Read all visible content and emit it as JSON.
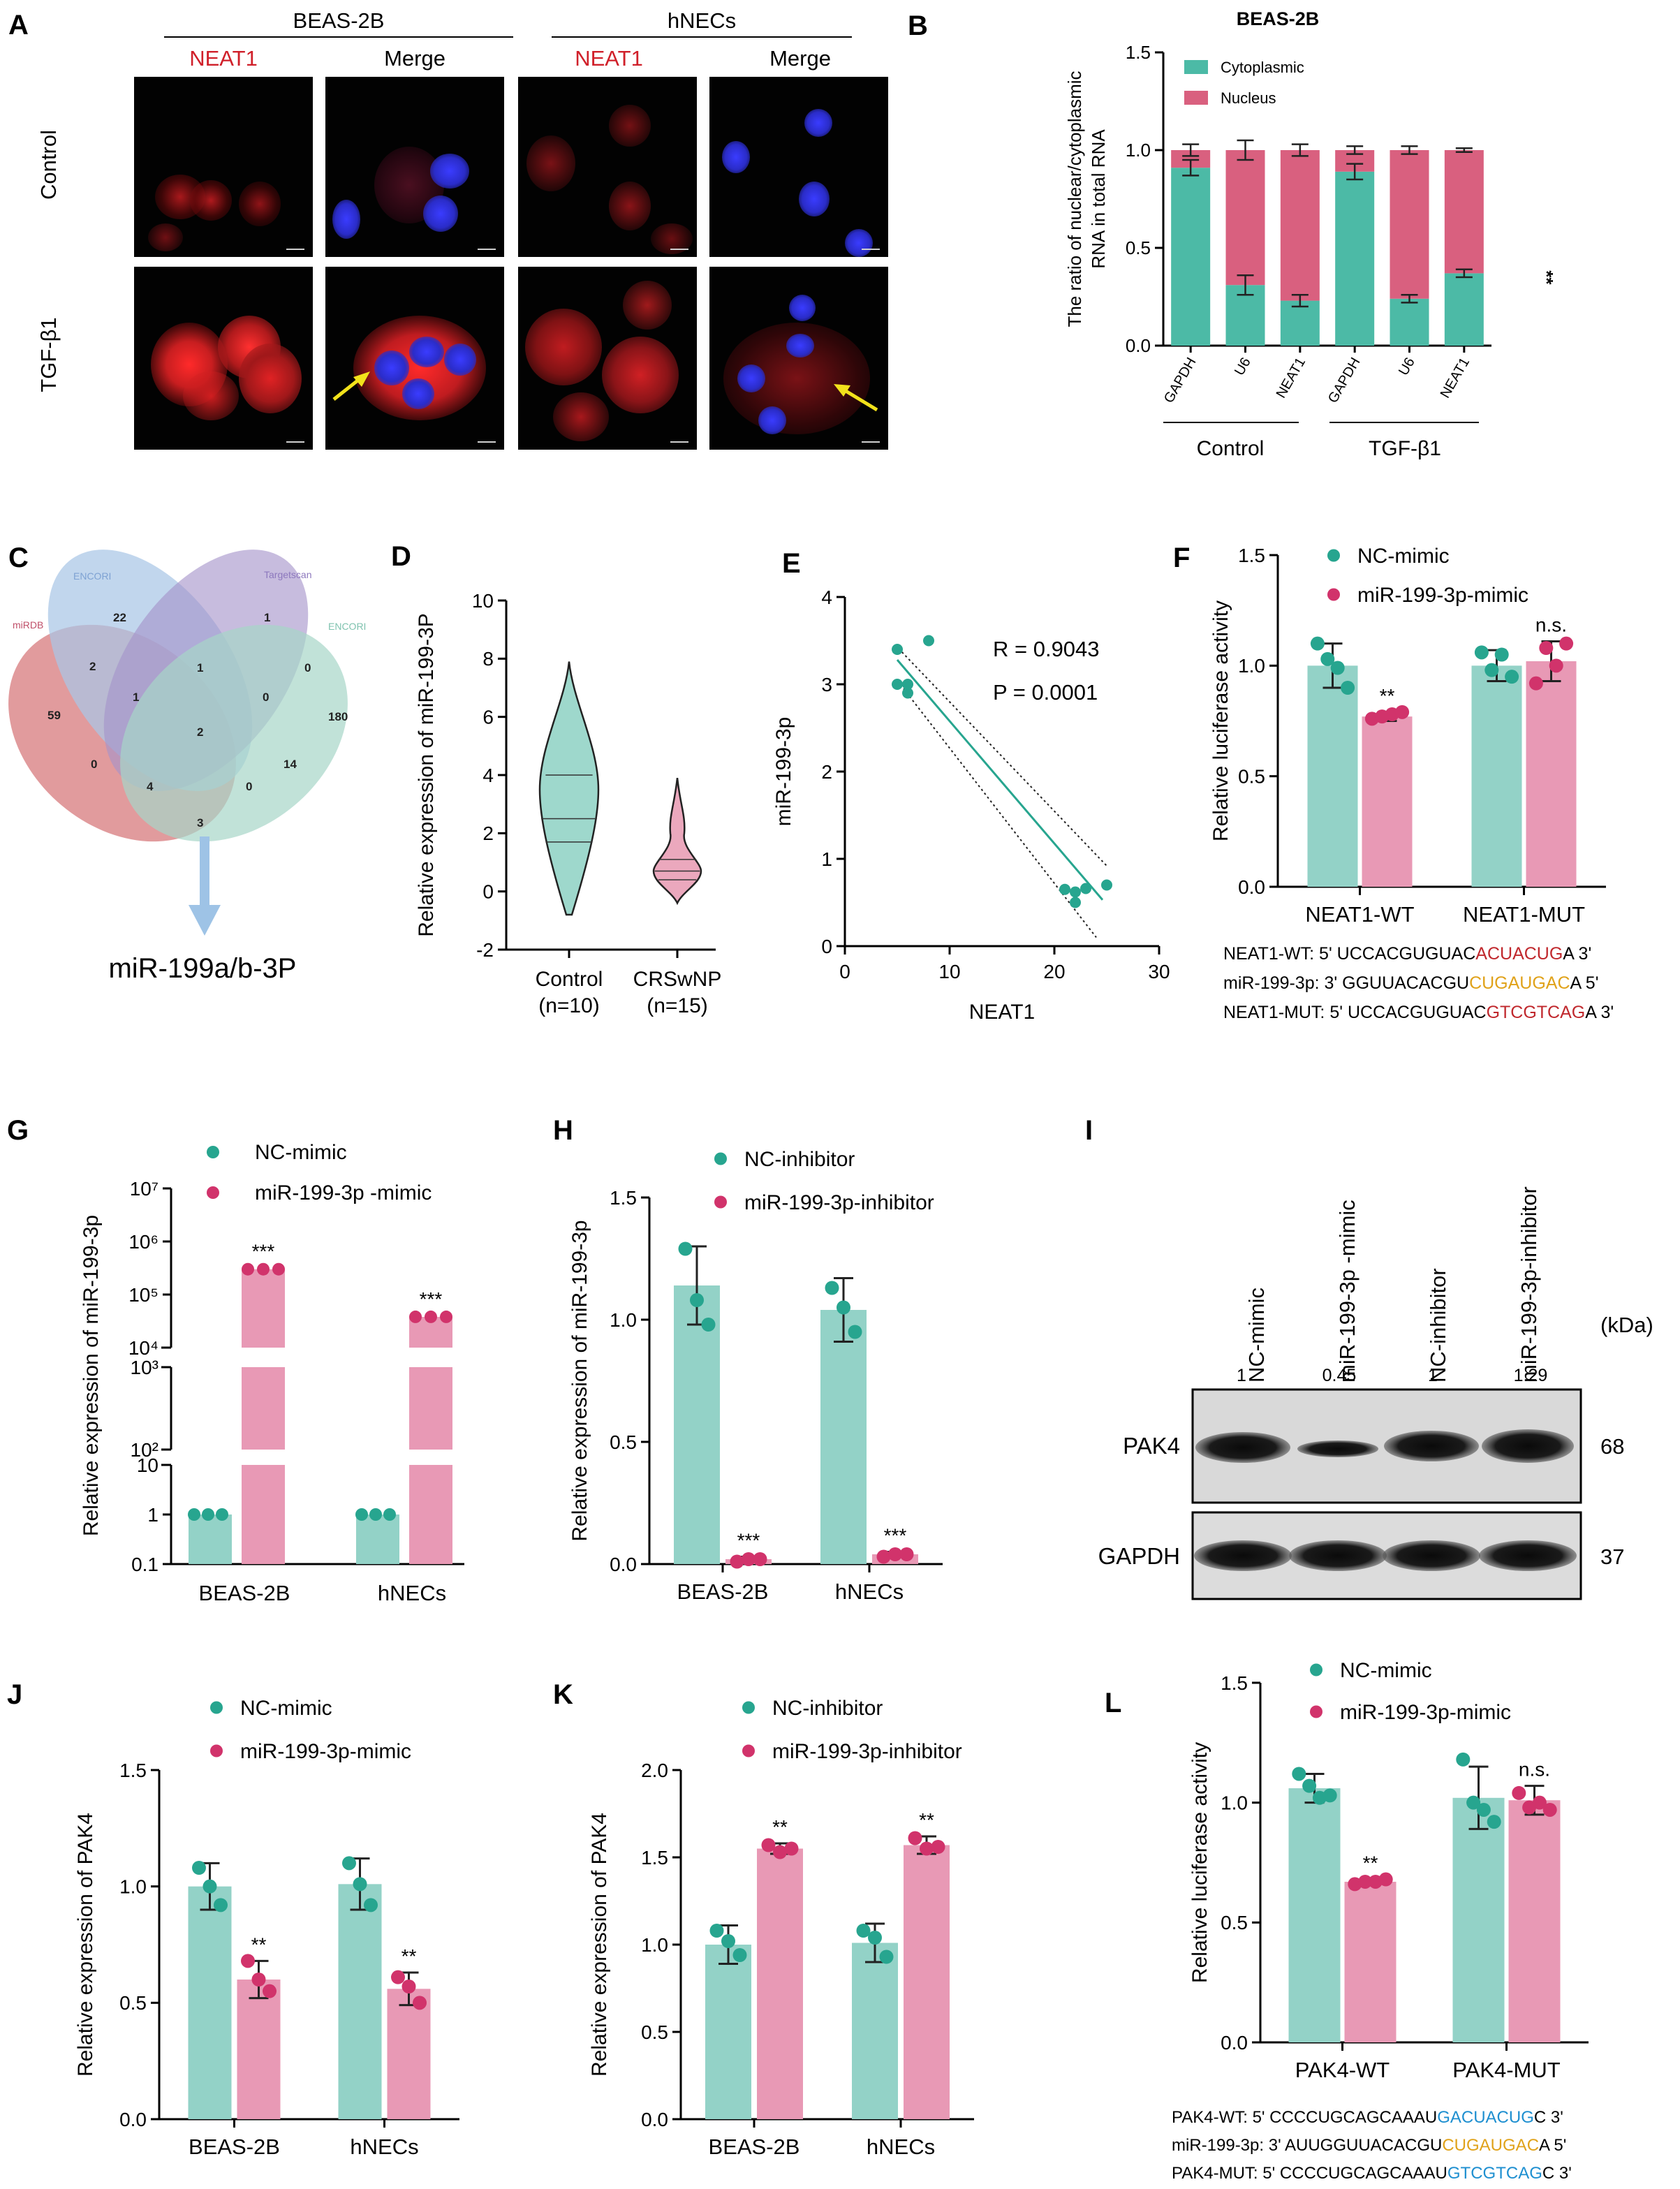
{
  "panels": {
    "A": {
      "letter": "A",
      "groups": [
        "BEAS-2B",
        "hNECs"
      ],
      "col_headers": [
        "NEAT1",
        "Merge",
        "NEAT1",
        "Merge"
      ],
      "row_labels": [
        "Control",
        "TGF-β1"
      ]
    },
    "C": {
      "letter": "C",
      "sets": [
        "miRDB",
        "ENCORI",
        "Targetscan",
        "ENCORI"
      ],
      "region_counts": [
        "59",
        "22",
        "1",
        "180",
        "2",
        "1",
        "0",
        "1",
        "0",
        "2",
        "14",
        "0",
        "4",
        "0",
        "3"
      ],
      "result_label": "miR-199a/b-3P"
    },
    "I": {
      "letter": "I",
      "lanes": [
        "NC-mimic",
        "miR-199-3p -mimic",
        "NC-inhibitor",
        "miR-199-3p-inhibitor"
      ],
      "quant": [
        "1",
        "0.45",
        "1",
        "1.29"
      ],
      "kda_header": "(kDa)",
      "rows": [
        {
          "label": "PAK4",
          "kda": "68"
        },
        {
          "label": "GAPDH",
          "kda": "37"
        }
      ]
    },
    "F_seq": [
      {
        "prefix": "NEAT1-WT: 5' UCCACGUGUAC",
        "hl": "ACUACUG",
        "suffix": "A 3'",
        "color": "#c0282d"
      },
      {
        "prefix": "miR-199-3p: 3' GGUUACACGU",
        "hl": "CUGAUGAC",
        "suffix": "A 5'",
        "color": "#e0a21a"
      },
      {
        "prefix": "NEAT1-MUT: 5' UCCACGUGUAC",
        "hl": "GTCGTCAG",
        "suffix": "A 3'",
        "color": "#c0282d"
      }
    ],
    "L_seq": [
      {
        "prefix": "PAK4-WT: 5' CCCCUGCAGCAAAU",
        "hl": "GACUACUG",
        "suffix": "C 3'",
        "color": "#1e8fd0"
      },
      {
        "prefix": "miR-199-3p: 3' AUUGGUUACACGU",
        "hl": "CUGAUGAC",
        "suffix": "A 5'",
        "color": "#e0a21a"
      },
      {
        "prefix": "PAK4-MUT: 5' CCCCUGCAGCAAAU",
        "hl": "GTCGTCAG",
        "suffix": "C 3'",
        "color": "#1e8fd0"
      }
    ]
  },
  "chart_data": [
    {
      "id": "B",
      "type": "bar",
      "title": "BEAS-2B",
      "ylabel": "The ratio of nuclear/cytoplasmic RNA in total RNA",
      "ylim": [
        0,
        1.5
      ],
      "yticks": [
        "0.0",
        "0.5",
        "1.0",
        "1.5"
      ],
      "categories": [
        "GAPDH",
        "U6",
        "NEAT1",
        "GAPDH",
        "U6",
        "NEAT1"
      ],
      "groups": [
        "Control",
        "TGF-β1"
      ],
      "series": [
        {
          "name": "Cytoplasmic",
          "values": [
            0.91,
            0.31,
            0.23,
            0.89,
            0.24,
            0.37
          ],
          "err": [
            0.04,
            0.05,
            0.03,
            0.04,
            0.02,
            0.02
          ]
        },
        {
          "name": "Nucleus",
          "values": [
            0.09,
            0.69,
            0.77,
            0.11,
            0.76,
            0.63
          ],
          "err": [
            0.03,
            0.05,
            0.03,
            0.02,
            0.02,
            0.01
          ]
        }
      ],
      "annotation": "**",
      "colors": {
        "Cytoplasmic": "#4cbaa6",
        "Nucleus": "#d9607f"
      }
    },
    {
      "id": "D",
      "type": "violin",
      "ylabel": "Relative expression of miR-199-3P",
      "ylim": [
        -2,
        10
      ],
      "yticks": [
        "-2",
        "0",
        "2",
        "4",
        "6",
        "8",
        "10"
      ],
      "categories": [
        "Control",
        "CRSwNP"
      ],
      "category_n": [
        "(n=10)",
        "(n=15)"
      ],
      "quartiles": [
        [
          1.7,
          2.5,
          4.0
        ],
        [
          0.4,
          0.7,
          1.1
        ]
      ],
      "ranges": [
        [
          -0.8,
          7.9
        ],
        [
          -0.4,
          3.9
        ]
      ],
      "colors": [
        "#9ed8cc",
        "#eba8bd"
      ]
    },
    {
      "id": "E",
      "type": "scatter",
      "xlabel": "NEAT1",
      "ylabel": "miR-199-3p",
      "xlim": [
        0,
        30
      ],
      "ylim": [
        0,
        4
      ],
      "xticks": [
        "0",
        "10",
        "20",
        "30"
      ],
      "yticks": [
        "0",
        "1",
        "2",
        "3",
        "4"
      ],
      "points": [
        [
          5,
          3.4
        ],
        [
          5,
          3.0
        ],
        [
          6,
          2.9
        ],
        [
          6,
          3.0
        ],
        [
          8,
          3.5
        ],
        [
          21,
          0.65
        ],
        [
          22,
          0.62
        ],
        [
          22,
          0.5
        ],
        [
          23,
          0.66
        ],
        [
          25,
          0.7
        ]
      ],
      "fit": [
        [
          5,
          3.28
        ],
        [
          24.6,
          0.53
        ]
      ],
      "ci_upper": [
        [
          4.8,
          3.45
        ],
        [
          25,
          0.92
        ]
      ],
      "ci_lower": [
        [
          5.6,
          2.95
        ],
        [
          24,
          0.1
        ]
      ],
      "stats": [
        "R = 0.9043",
        "P = 0.0001"
      ],
      "color": "#27a58f"
    },
    {
      "id": "F",
      "type": "bar",
      "ylabel": "Relative luciferase activity",
      "ylim": [
        0,
        1.5
      ],
      "yticks": [
        "0.0",
        "0.5",
        "1.0",
        "1.5"
      ],
      "categories": [
        "NEAT1-WT",
        "NEAT1-MUT"
      ],
      "series": [
        {
          "name": "NC-mimic",
          "values": [
            1.0,
            1.0
          ],
          "err": [
            0.1,
            0.07
          ],
          "points": [
            [
              1.1,
              1.03,
              0.99,
              0.9
            ],
            [
              1.06,
              0.98,
              1.05,
              0.95
            ]
          ]
        },
        {
          "name": "miR-199-3p-mimic",
          "values": [
            0.77,
            1.02
          ],
          "err": [
            0.02,
            0.09
          ],
          "points": [
            [
              0.76,
              0.77,
              0.78,
              0.79
            ],
            [
              0.92,
              1.08,
              1.0,
              1.1
            ]
          ]
        }
      ],
      "annotations": [
        "**",
        "n.s."
      ],
      "colors": {
        "NC-mimic": "#27a58f",
        "miR-199-3p-mimic": "#d1336b"
      }
    },
    {
      "id": "G",
      "type": "bar",
      "ylabel": "Relative expression of miR-199-3p",
      "yscale": "log-broken",
      "yticks": [
        "0.1",
        "1",
        "10",
        "10²",
        "10³",
        "10⁴",
        "10⁵",
        "10⁶",
        "10⁷"
      ],
      "categories": [
        "BEAS-2B",
        "hNECs"
      ],
      "series": [
        {
          "name": "NC-mimic",
          "values": [
            1.0,
            1.0
          ]
        },
        {
          "name": "miR-199-3p -mimic",
          "values": [
            300000,
            38000
          ]
        }
      ],
      "annotations": [
        "***",
        "***"
      ],
      "colors": {
        "NC-mimic": "#27a58f",
        "miR-199-3p -mimic": "#d1336b"
      }
    },
    {
      "id": "H",
      "type": "bar",
      "ylabel": "Relative expression of miR-199-3p",
      "ylim": [
        0,
        1.5
      ],
      "yticks": [
        "0.0",
        "0.5",
        "1.0",
        "1.5"
      ],
      "categories": [
        "BEAS-2B",
        "hNECs"
      ],
      "series": [
        {
          "name": "NC-inhibitor",
          "values": [
            1.14,
            1.04
          ],
          "err": [
            0.16,
            0.13
          ],
          "points": [
            [
              1.29,
              1.08,
              0.98
            ],
            [
              1.13,
              1.05,
              0.95
            ]
          ]
        },
        {
          "name": "miR-199-3p-inhibitor",
          "values": [
            0.02,
            0.04
          ],
          "err": [
            0.01,
            0.01
          ],
          "points": [
            [
              0.01,
              0.02,
              0.02
            ],
            [
              0.03,
              0.04,
              0.04
            ]
          ]
        }
      ],
      "annotations": [
        "***",
        "***"
      ],
      "colors": {
        "NC-inhibitor": "#27a58f",
        "miR-199-3p-inhibitor": "#d1336b"
      }
    },
    {
      "id": "J",
      "type": "bar",
      "ylabel": "Relative expression of PAK4",
      "ylim": [
        0,
        1.5
      ],
      "yticks": [
        "0.0",
        "0.5",
        "1.0",
        "1.5"
      ],
      "categories": [
        "BEAS-2B",
        "hNECs"
      ],
      "series": [
        {
          "name": "NC-mimic",
          "values": [
            1.0,
            1.01
          ],
          "err": [
            0.1,
            0.11
          ],
          "points": [
            [
              1.08,
              1.0,
              0.92
            ],
            [
              1.1,
              1.01,
              0.92
            ]
          ]
        },
        {
          "name": "miR-199-3p-mimic",
          "values": [
            0.6,
            0.56
          ],
          "err": [
            0.08,
            0.07
          ],
          "points": [
            [
              0.68,
              0.6,
              0.55
            ],
            [
              0.61,
              0.57,
              0.5
            ]
          ]
        }
      ],
      "annotations": [
        "**",
        "**"
      ],
      "colors": {
        "NC-mimic": "#27a58f",
        "miR-199-3p-mimic": "#d1336b"
      }
    },
    {
      "id": "K",
      "type": "bar",
      "ylabel": "Relative expression of PAK4",
      "ylim": [
        0,
        2.0
      ],
      "yticks": [
        "0.0",
        "0.5",
        "1.0",
        "1.5",
        "2.0"
      ],
      "categories": [
        "BEAS-2B",
        "hNECs"
      ],
      "series": [
        {
          "name": "NC-inhibitor",
          "values": [
            1.0,
            1.01
          ],
          "err": [
            0.11,
            0.11
          ],
          "points": [
            [
              1.08,
              1.02,
              0.94
            ],
            [
              1.08,
              1.04,
              0.93
            ]
          ]
        },
        {
          "name": "miR-199-3p-inhibitor",
          "values": [
            1.55,
            1.57
          ],
          "err": [
            0.03,
            0.05
          ],
          "points": [
            [
              1.57,
              1.53,
              1.55
            ],
            [
              1.61,
              1.55,
              1.56
            ]
          ]
        }
      ],
      "annotations": [
        "**",
        "**"
      ],
      "colors": {
        "NC-inhibitor": "#27a58f",
        "miR-199-3p-inhibitor": "#d1336b"
      }
    },
    {
      "id": "L",
      "type": "bar",
      "ylabel": "Relative luciferase activity",
      "ylim": [
        0,
        1.5
      ],
      "yticks": [
        "0.0",
        "0.5",
        "1.0",
        "1.5"
      ],
      "categories": [
        "PAK4-WT",
        "PAK4-MUT"
      ],
      "series": [
        {
          "name": "NC-mimic",
          "values": [
            1.06,
            1.02
          ],
          "err": [
            0.06,
            0.13
          ],
          "points": [
            [
              1.12,
              1.07,
              1.02,
              1.03
            ],
            [
              1.18,
              1.0,
              0.97,
              0.92
            ]
          ]
        },
        {
          "name": "miR-199-3p-mimic",
          "values": [
            0.67,
            1.01
          ],
          "err": [
            0.01,
            0.06
          ],
          "points": [
            [
              0.66,
              0.67,
              0.67,
              0.68
            ],
            [
              1.04,
              0.98,
              1.0,
              0.97
            ]
          ]
        }
      ],
      "annotations": [
        "**",
        "n.s."
      ],
      "colors": {
        "NC-mimic": "#27a58f",
        "miR-199-3p-mimic": "#d1336b"
      }
    }
  ]
}
